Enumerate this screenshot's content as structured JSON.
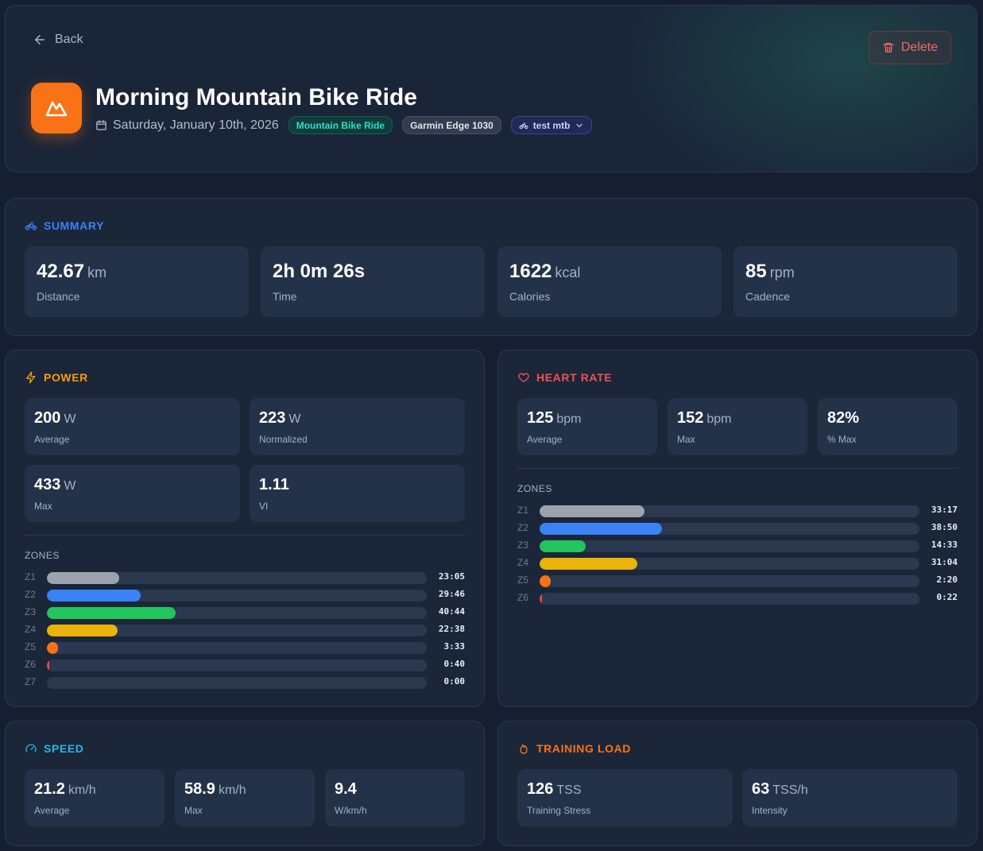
{
  "header": {
    "back_label": "Back",
    "delete_label": "Delete",
    "title": "Morning Mountain Bike Ride",
    "date": "Saturday, January 10th, 2026",
    "sport_badge": "Mountain Bike Ride",
    "device_badge": "Garmin Edge 1030",
    "bike_badge": "test mtb"
  },
  "summary": {
    "title": "SUMMARY",
    "stats": [
      {
        "value": "42.67",
        "unit": "km",
        "label": "Distance"
      },
      {
        "value": "2h 0m 26s",
        "unit": "",
        "label": "Time"
      },
      {
        "value": "1622",
        "unit": "kcal",
        "label": "Calories"
      },
      {
        "value": "85",
        "unit": "rpm",
        "label": "Cadence"
      }
    ]
  },
  "power": {
    "title": "POWER",
    "stats": [
      {
        "value": "200",
        "unit": "W",
        "label": "Average"
      },
      {
        "value": "223",
        "unit": "W",
        "label": "Normalized"
      },
      {
        "value": "433",
        "unit": "W",
        "label": "Max"
      },
      {
        "value": "1.11",
        "unit": "",
        "label": "VI"
      }
    ],
    "zones_label": "ZONES",
    "zones": [
      {
        "name": "Z1",
        "time": "23:05",
        "fraction": 0.19,
        "color": "#9ca3af"
      },
      {
        "name": "Z2",
        "time": "29:46",
        "fraction": 0.247,
        "color": "#3b82f6"
      },
      {
        "name": "Z3",
        "time": "40:44",
        "fraction": 0.338,
        "color": "#22c55e"
      },
      {
        "name": "Z4",
        "time": "22:38",
        "fraction": 0.187,
        "color": "#eab308"
      },
      {
        "name": "Z5",
        "time": "3:33",
        "fraction": 0.029,
        "color": "#f97316"
      },
      {
        "name": "Z6",
        "time": "0:40",
        "fraction": 0.006,
        "color": "#ef4444"
      },
      {
        "name": "Z7",
        "time": "0:00",
        "fraction": 0.0,
        "color": "#a855f7"
      }
    ]
  },
  "heart_rate": {
    "title": "HEART RATE",
    "stats": [
      {
        "value": "125",
        "unit": "bpm",
        "label": "Average"
      },
      {
        "value": "152",
        "unit": "bpm",
        "label": "Max"
      },
      {
        "value": "82%",
        "unit": "",
        "label": "% Max"
      }
    ],
    "zones_label": "ZONES",
    "zones": [
      {
        "name": "Z1",
        "time": "33:17",
        "fraction": 0.277,
        "color": "#9ca3af"
      },
      {
        "name": "Z2",
        "time": "38:50",
        "fraction": 0.323,
        "color": "#3b82f6"
      },
      {
        "name": "Z3",
        "time": "14:33",
        "fraction": 0.121,
        "color": "#22c55e"
      },
      {
        "name": "Z4",
        "time": "31:04",
        "fraction": 0.258,
        "color": "#eab308"
      },
      {
        "name": "Z5",
        "time": "2:20",
        "fraction": 0.019,
        "color": "#f97316"
      },
      {
        "name": "Z6",
        "time": "0:22",
        "fraction": 0.003,
        "color": "#ef4444"
      }
    ]
  },
  "speed": {
    "title": "SPEED",
    "stats": [
      {
        "value": "21.2",
        "unit": "km/h",
        "label": "Average"
      },
      {
        "value": "58.9",
        "unit": "km/h",
        "label": "Max"
      },
      {
        "value": "9.4",
        "unit": "",
        "label": "W/km/h"
      }
    ]
  },
  "training_load": {
    "title": "TRAINING LOAD",
    "stats": [
      {
        "value": "126",
        "unit": "TSS",
        "label": "Training Stress"
      },
      {
        "value": "63",
        "unit": "TSS/h",
        "label": "Intensity"
      }
    ]
  },
  "colors": {
    "summary": "#3b82f6",
    "power": "#f59e0b",
    "heart_rate": "#f05252",
    "speed": "#22b8e6",
    "training_load": "#f97316"
  }
}
